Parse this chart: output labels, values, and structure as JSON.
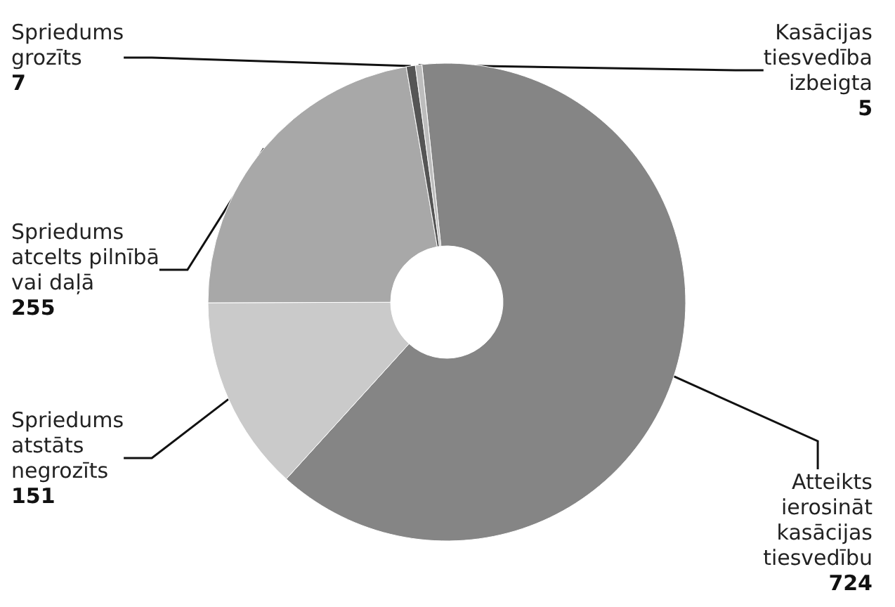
{
  "chart_data": {
    "type": "donut",
    "categories": [
      "Atteikts ierosināt kasācijas tiesvedību",
      "Spriedums atstāts negrozīts",
      "Spriedums atcelts pilnībā vai daļā",
      "Spriedums grozīts",
      "Kasācijas tiesvedība izbeigta"
    ],
    "values": [
      724,
      151,
      255,
      7,
      5
    ],
    "colors": [
      "#858585",
      "#cacaca",
      "#a8a8a8",
      "#555555",
      "#bdbdbd"
    ],
    "data_labels": true
  }
}
